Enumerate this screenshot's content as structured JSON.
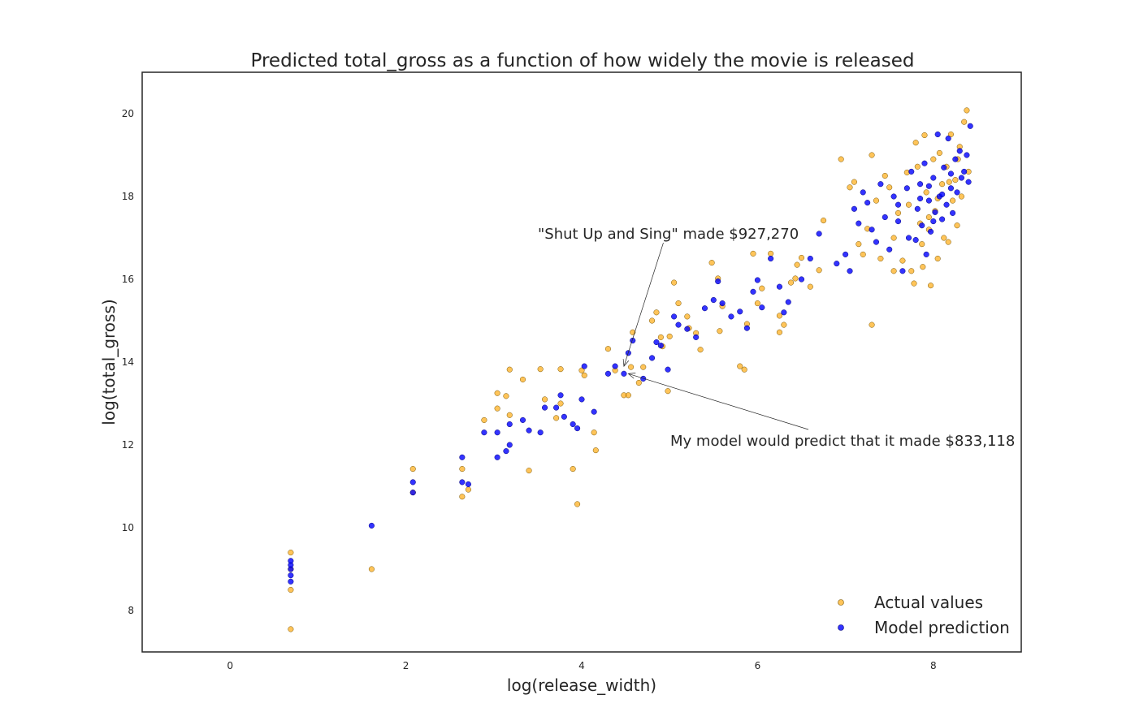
{
  "chart_data": {
    "type": "scatter",
    "title": "Predicted total_gross as a function of how widely the movie is released",
    "xlabel": "log(release_width)",
    "ylabel": "log(total_gross)",
    "xlim": [
      -1.0,
      9.0
    ],
    "ylim": [
      7.0,
      21.0
    ],
    "xticks": [
      0,
      2,
      4,
      6,
      8
    ],
    "yticks": [
      8,
      10,
      12,
      14,
      16,
      18,
      20
    ],
    "grid": false,
    "legend": {
      "position": "lower-right",
      "entries": [
        "Actual values",
        "Model prediction"
      ]
    },
    "series": [
      {
        "name": "Actual values",
        "color": "#FFA500",
        "points": [
          [
            0.69,
            7.55
          ],
          [
            0.69,
            8.5
          ],
          [
            0.69,
            9.0
          ],
          [
            0.69,
            9.4
          ],
          [
            1.61,
            9.0
          ],
          [
            2.08,
            10.85
          ],
          [
            2.08,
            11.42
          ],
          [
            2.64,
            10.75
          ],
          [
            2.64,
            11.42
          ],
          [
            2.71,
            10.92
          ],
          [
            2.89,
            12.6
          ],
          [
            3.04,
            12.88
          ],
          [
            3.04,
            13.25
          ],
          [
            3.14,
            13.18
          ],
          [
            3.18,
            12.72
          ],
          [
            3.18,
            13.82
          ],
          [
            3.33,
            13.58
          ],
          [
            3.4,
            11.38
          ],
          [
            3.53,
            13.83
          ],
          [
            3.58,
            13.1
          ],
          [
            3.71,
            12.65
          ],
          [
            3.76,
            13.0
          ],
          [
            3.76,
            13.83
          ],
          [
            3.9,
            11.42
          ],
          [
            3.95,
            10.57
          ],
          [
            4.0,
            13.8
          ],
          [
            4.03,
            13.68
          ],
          [
            4.14,
            12.3
          ],
          [
            4.16,
            11.87
          ],
          [
            4.3,
            14.32
          ],
          [
            4.38,
            13.8
          ],
          [
            4.48,
            13.2
          ],
          [
            4.53,
            13.2
          ],
          [
            4.56,
            13.88
          ],
          [
            4.58,
            14.72
          ],
          [
            4.65,
            13.5
          ],
          [
            4.7,
            13.88
          ],
          [
            4.8,
            15.0
          ],
          [
            4.85,
            15.2
          ],
          [
            4.9,
            14.6
          ],
          [
            4.92,
            14.38
          ],
          [
            4.98,
            13.3
          ],
          [
            5.0,
            14.62
          ],
          [
            5.05,
            15.92
          ],
          [
            5.1,
            15.42
          ],
          [
            5.2,
            15.1
          ],
          [
            5.22,
            14.82
          ],
          [
            5.3,
            14.7
          ],
          [
            5.35,
            14.3
          ],
          [
            5.48,
            16.4
          ],
          [
            5.55,
            16.02
          ],
          [
            5.57,
            14.75
          ],
          [
            5.6,
            15.35
          ],
          [
            5.8,
            13.9
          ],
          [
            5.85,
            13.82
          ],
          [
            5.88,
            14.92
          ],
          [
            5.95,
            16.62
          ],
          [
            6.0,
            15.42
          ],
          [
            6.05,
            15.78
          ],
          [
            6.15,
            16.62
          ],
          [
            6.25,
            15.12
          ],
          [
            6.25,
            14.72
          ],
          [
            6.3,
            14.9
          ],
          [
            6.38,
            15.92
          ],
          [
            6.43,
            16.02
          ],
          [
            6.45,
            16.35
          ],
          [
            6.5,
            16.52
          ],
          [
            6.6,
            15.82
          ],
          [
            6.7,
            16.22
          ],
          [
            6.75,
            17.42
          ],
          [
            6.95,
            18.9
          ],
          [
            7.05,
            18.22
          ],
          [
            7.1,
            18.35
          ],
          [
            7.15,
            16.85
          ],
          [
            7.2,
            16.6
          ],
          [
            7.25,
            17.22
          ],
          [
            7.3,
            19.0
          ],
          [
            7.35,
            17.9
          ],
          [
            7.4,
            16.5
          ],
          [
            7.45,
            18.5
          ],
          [
            7.5,
            18.22
          ],
          [
            7.55,
            17.0
          ],
          [
            7.6,
            17.6
          ],
          [
            7.65,
            16.45
          ],
          [
            7.7,
            18.58
          ],
          [
            7.72,
            17.8
          ],
          [
            7.75,
            16.2
          ],
          [
            7.78,
            15.9
          ],
          [
            7.8,
            19.3
          ],
          [
            7.82,
            18.72
          ],
          [
            7.85,
            17.35
          ],
          [
            7.87,
            16.85
          ],
          [
            7.9,
            19.48
          ],
          [
            7.92,
            18.1
          ],
          [
            7.95,
            17.2
          ],
          [
            7.97,
            15.85
          ],
          [
            8.0,
            18.9
          ],
          [
            8.02,
            17.65
          ],
          [
            8.05,
            16.5
          ],
          [
            8.07,
            19.05
          ],
          [
            8.1,
            18.3
          ],
          [
            8.12,
            17.0
          ],
          [
            8.15,
            18.72
          ],
          [
            8.17,
            16.9
          ],
          [
            8.2,
            19.5
          ],
          [
            8.22,
            17.9
          ],
          [
            8.25,
            18.4
          ],
          [
            8.27,
            17.3
          ],
          [
            8.3,
            19.2
          ],
          [
            8.32,
            18.0
          ],
          [
            8.35,
            19.8
          ],
          [
            8.38,
            20.08
          ],
          [
            8.4,
            18.6
          ],
          [
            7.3,
            14.9
          ],
          [
            7.55,
            16.2
          ],
          [
            7.95,
            17.5
          ],
          [
            8.05,
            17.95
          ],
          [
            8.18,
            18.35
          ],
          [
            7.88,
            16.3
          ],
          [
            8.28,
            18.9
          ]
        ]
      },
      {
        "name": "Model prediction",
        "color": "#0000FF",
        "points": [
          [
            0.69,
            8.7
          ],
          [
            0.69,
            8.85
          ],
          [
            0.69,
            9.0
          ],
          [
            0.69,
            9.1
          ],
          [
            0.69,
            9.2
          ],
          [
            1.61,
            10.05
          ],
          [
            2.08,
            10.85
          ],
          [
            2.08,
            11.1
          ],
          [
            2.64,
            11.1
          ],
          [
            2.64,
            11.7
          ],
          [
            2.71,
            11.05
          ],
          [
            2.89,
            12.3
          ],
          [
            3.04,
            11.7
          ],
          [
            3.04,
            12.3
          ],
          [
            3.14,
            11.85
          ],
          [
            3.18,
            12.0
          ],
          [
            3.18,
            12.5
          ],
          [
            3.33,
            12.6
          ],
          [
            3.4,
            12.35
          ],
          [
            3.53,
            12.3
          ],
          [
            3.58,
            12.9
          ],
          [
            3.71,
            12.9
          ],
          [
            3.76,
            13.2
          ],
          [
            3.8,
            12.68
          ],
          [
            3.9,
            12.5
          ],
          [
            3.95,
            12.4
          ],
          [
            4.0,
            13.1
          ],
          [
            4.03,
            13.9
          ],
          [
            4.14,
            12.8
          ],
          [
            4.3,
            13.72
          ],
          [
            4.38,
            13.9
          ],
          [
            4.48,
            13.72
          ],
          [
            4.53,
            14.22
          ],
          [
            4.58,
            14.52
          ],
          [
            4.7,
            13.6
          ],
          [
            4.8,
            14.1
          ],
          [
            4.85,
            14.48
          ],
          [
            4.9,
            14.4
          ],
          [
            4.98,
            13.82
          ],
          [
            5.05,
            15.1
          ],
          [
            5.1,
            14.9
          ],
          [
            5.2,
            14.8
          ],
          [
            5.3,
            14.6
          ],
          [
            5.4,
            15.3
          ],
          [
            5.5,
            15.5
          ],
          [
            5.55,
            15.95
          ],
          [
            5.6,
            15.42
          ],
          [
            5.7,
            15.1
          ],
          [
            5.8,
            15.22
          ],
          [
            5.88,
            14.82
          ],
          [
            5.95,
            15.7
          ],
          [
            6.0,
            15.98
          ],
          [
            6.05,
            15.32
          ],
          [
            6.15,
            16.5
          ],
          [
            6.25,
            15.82
          ],
          [
            6.3,
            15.2
          ],
          [
            6.35,
            15.45
          ],
          [
            6.5,
            16.0
          ],
          [
            6.6,
            16.5
          ],
          [
            6.7,
            17.1
          ],
          [
            6.9,
            16.38
          ],
          [
            7.0,
            16.6
          ],
          [
            7.05,
            16.2
          ],
          [
            7.1,
            17.7
          ],
          [
            7.15,
            17.35
          ],
          [
            7.2,
            18.1
          ],
          [
            7.3,
            17.2
          ],
          [
            7.35,
            16.9
          ],
          [
            7.4,
            18.3
          ],
          [
            7.45,
            17.5
          ],
          [
            7.5,
            16.72
          ],
          [
            7.55,
            18.0
          ],
          [
            7.6,
            17.4
          ],
          [
            7.65,
            16.2
          ],
          [
            7.7,
            18.2
          ],
          [
            7.72,
            17.0
          ],
          [
            7.75,
            18.6
          ],
          [
            7.8,
            16.95
          ],
          [
            7.82,
            17.7
          ],
          [
            7.85,
            18.3
          ],
          [
            7.87,
            17.3
          ],
          [
            7.9,
            18.8
          ],
          [
            7.92,
            16.6
          ],
          [
            7.95,
            17.9
          ],
          [
            7.97,
            17.15
          ],
          [
            8.0,
            18.45
          ],
          [
            8.02,
            17.62
          ],
          [
            8.05,
            19.5
          ],
          [
            8.07,
            18.0
          ],
          [
            8.1,
            17.45
          ],
          [
            8.12,
            18.7
          ],
          [
            8.15,
            17.8
          ],
          [
            8.17,
            19.4
          ],
          [
            8.2,
            18.2
          ],
          [
            8.22,
            17.6
          ],
          [
            8.25,
            18.9
          ],
          [
            8.27,
            18.1
          ],
          [
            8.3,
            19.1
          ],
          [
            8.32,
            18.45
          ],
          [
            8.35,
            18.6
          ],
          [
            8.38,
            19.0
          ],
          [
            8.4,
            18.35
          ],
          [
            8.42,
            19.7
          ],
          [
            7.25,
            17.85
          ],
          [
            7.6,
            17.8
          ],
          [
            7.85,
            17.95
          ],
          [
            8.0,
            17.4
          ],
          [
            8.1,
            18.05
          ],
          [
            8.2,
            18.55
          ],
          [
            7.95,
            18.25
          ]
        ]
      }
    ],
    "annotations": [
      {
        "text": "\"Shut Up and Sing\" made $927,270",
        "point": [
          4.48,
          13.9
        ],
        "text_pos": [
          3.45,
          17.0
        ]
      },
      {
        "text": "My model would predict that it made $833,118",
        "point": [
          4.53,
          13.72
        ],
        "text_pos": [
          5.0,
          11.95
        ]
      }
    ]
  }
}
